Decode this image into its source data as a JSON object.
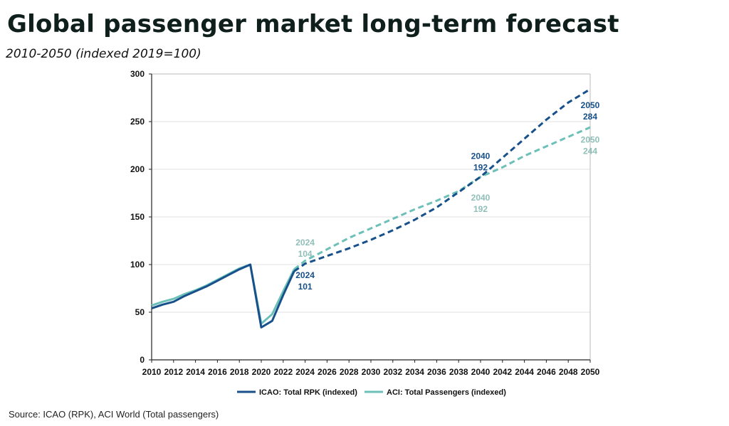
{
  "header": {
    "title": "Global passenger market long-term forecast",
    "subtitle": "2010-2050 (indexed 2019=100)"
  },
  "footer": {
    "source": "Source: ICAO (RPK), ACI World (Total passengers)"
  },
  "colors": {
    "icao": "#17508a",
    "aci": "#6cc0b8",
    "aci_label": "#8fbfb8",
    "grid": "#e2e2e2",
    "axis": "#222222"
  },
  "chart_data": {
    "type": "line",
    "xlim": [
      2010,
      2050
    ],
    "ylim": [
      0,
      300
    ],
    "x_ticks": [
      2010,
      2012,
      2014,
      2016,
      2018,
      2020,
      2022,
      2024,
      2026,
      2028,
      2030,
      2032,
      2034,
      2036,
      2038,
      2040,
      2042,
      2044,
      2046,
      2048,
      2050
    ],
    "y_ticks": [
      0,
      50,
      100,
      150,
      200,
      250,
      300
    ],
    "grid": true,
    "legend_position": "bottom",
    "series": [
      {
        "key": "icao",
        "name": "ICAO: Total RPK (indexed)",
        "actual": {
          "x": [
            2010,
            2011,
            2012,
            2013,
            2014,
            2015,
            2016,
            2017,
            2018,
            2019,
            2020,
            2021,
            2022,
            2023
          ],
          "y": [
            54,
            58,
            61,
            67,
            72,
            77,
            83,
            89,
            95,
            100,
            34,
            41,
            68,
            93
          ]
        },
        "forecast": {
          "x": [
            2023,
            2024,
            2026,
            2028,
            2030,
            2032,
            2034,
            2036,
            2038,
            2040,
            2042,
            2044,
            2046,
            2048,
            2050
          ],
          "y": [
            93,
            101,
            109,
            117,
            126,
            136,
            147,
            160,
            176,
            192,
            212,
            232,
            252,
            270,
            284
          ]
        }
      },
      {
        "key": "aci",
        "name": "ACI: Total Passengers (indexed)",
        "actual": {
          "x": [
            2010,
            2011,
            2012,
            2013,
            2014,
            2015,
            2016,
            2017,
            2018,
            2019,
            2020,
            2021,
            2022,
            2023
          ],
          "y": [
            57,
            61,
            64,
            69,
            73,
            78,
            84,
            90,
            96,
            100,
            38,
            48,
            72,
            95
          ]
        },
        "forecast": {
          "x": [
            2023,
            2024,
            2026,
            2028,
            2030,
            2032,
            2034,
            2036,
            2038,
            2040,
            2042,
            2044,
            2046,
            2048,
            2050
          ],
          "y": [
            95,
            104,
            116,
            128,
            138,
            148,
            158,
            167,
            177,
            192,
            202,
            214,
            224,
            234,
            244
          ]
        }
      }
    ],
    "annotations": [
      {
        "series": "aci",
        "year": "2024",
        "value": "104",
        "x": 2024,
        "y": 120
      },
      {
        "series": "icao",
        "year": "2024",
        "value": "101",
        "x": 2024,
        "y": 86
      },
      {
        "series": "icao",
        "year": "2040",
        "value": "192",
        "x": 2040,
        "y": 211
      },
      {
        "series": "aci",
        "year": "2040",
        "value": "192",
        "x": 2040,
        "y": 167
      },
      {
        "series": "icao",
        "year": "2050",
        "value": "284",
        "x": 2050,
        "y": 264
      },
      {
        "series": "aci",
        "year": "2050",
        "value": "244",
        "x": 2050,
        "y": 228
      }
    ]
  }
}
